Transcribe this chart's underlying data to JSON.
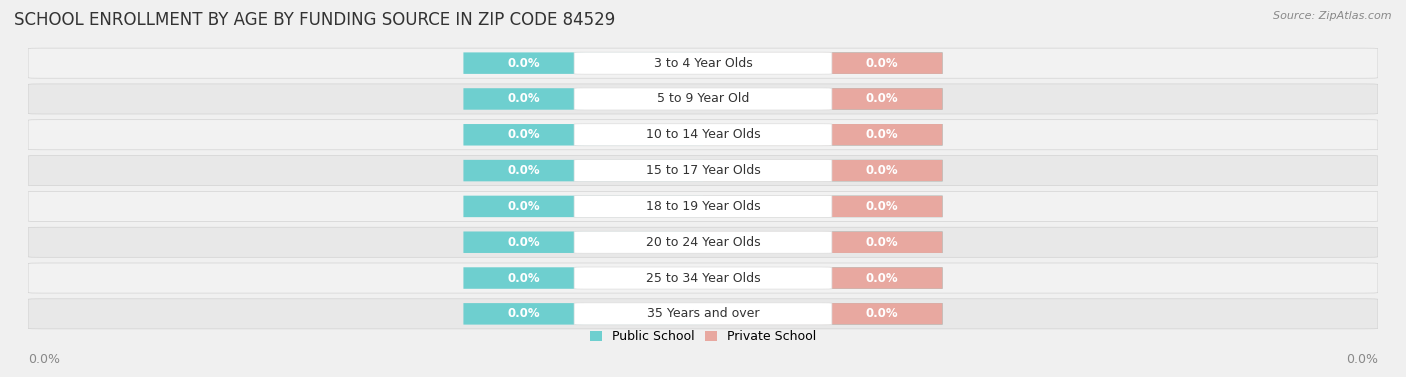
{
  "title": "SCHOOL ENROLLMENT BY AGE BY FUNDING SOURCE IN ZIP CODE 84529",
  "source": "Source: ZipAtlas.com",
  "categories": [
    "3 to 4 Year Olds",
    "5 to 9 Year Old",
    "10 to 14 Year Olds",
    "15 to 17 Year Olds",
    "18 to 19 Year Olds",
    "20 to 24 Year Olds",
    "25 to 34 Year Olds",
    "35 Years and over"
  ],
  "public_values": [
    0.0,
    0.0,
    0.0,
    0.0,
    0.0,
    0.0,
    0.0,
    0.0
  ],
  "private_values": [
    0.0,
    0.0,
    0.0,
    0.0,
    0.0,
    0.0,
    0.0,
    0.0
  ],
  "public_color": "#6ecfcf",
  "private_color": "#e8a8a0",
  "background_color": "#f0f0f0",
  "row_color_even": "#f2f2f2",
  "row_color_odd": "#e8e8e8",
  "title_fontsize": 12,
  "label_fontsize": 9,
  "value_fontsize": 8.5,
  "tick_fontsize": 9,
  "legend_public": "Public School",
  "legend_private": "Private School"
}
